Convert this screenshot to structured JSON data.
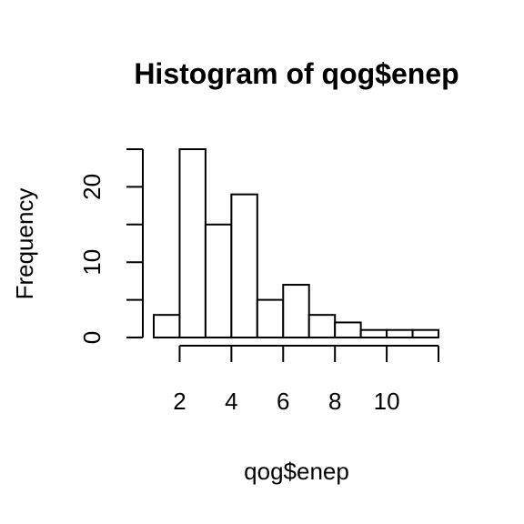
{
  "chart_data": {
    "type": "bar",
    "title": "Histogram of qog$enep",
    "xlabel": "qog$enep",
    "ylabel": "Frequency",
    "bins": [
      {
        "start": 1,
        "end": 2,
        "count": 3
      },
      {
        "start": 2,
        "end": 3,
        "count": 25
      },
      {
        "start": 3,
        "end": 4,
        "count": 15
      },
      {
        "start": 4,
        "end": 5,
        "count": 19
      },
      {
        "start": 5,
        "end": 6,
        "count": 5
      },
      {
        "start": 6,
        "end": 7,
        "count": 7
      },
      {
        "start": 7,
        "end": 8,
        "count": 3
      },
      {
        "start": 8,
        "end": 9,
        "count": 2
      },
      {
        "start": 9,
        "end": 10,
        "count": 1
      },
      {
        "start": 10,
        "end": 11,
        "count": 1
      },
      {
        "start": 11,
        "end": 12,
        "count": 1
      }
    ],
    "xlim": [
      1,
      12
    ],
    "ylim": [
      0,
      25
    ],
    "x_ticks": [
      2,
      4,
      6,
      8,
      10,
      12
    ],
    "x_tick_labels": [
      "2",
      "4",
      "6",
      "8",
      "10",
      ""
    ],
    "y_ticks": [
      0,
      5,
      10,
      15,
      20,
      25
    ],
    "y_tick_labels": [
      "0",
      "",
      "10",
      "",
      "20",
      ""
    ],
    "grid": false,
    "legend": "none",
    "colors": {
      "bar_fill": "#ffffff",
      "bar_stroke": "#000000"
    }
  }
}
